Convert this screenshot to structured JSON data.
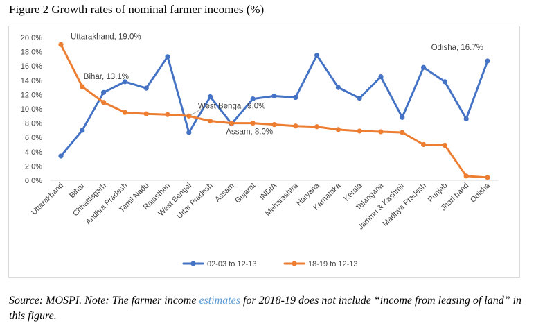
{
  "figure_title": "Figure 2 Growth rates of nominal farmer incomes (%)",
  "note": {
    "before": "Source: MOSPI. Note: The farmer income ",
    "link": "estimates",
    "after": " for 2018-19 does not include “income from leasing of land” in this figure."
  },
  "chart_data": {
    "type": "line",
    "title": "",
    "xlabel": "",
    "ylabel": "",
    "ylim": [
      0,
      20
    ],
    "ytick_labels": [
      "0.0%",
      "2.0%",
      "4.0%",
      "6.0%",
      "8.0%",
      "10.0%",
      "12.0%",
      "14.0%",
      "16.0%",
      "18.0%",
      "20.0%"
    ],
    "grid": false,
    "legend_position": "bottom",
    "categories": [
      "Uttarakhand",
      "Bihar",
      "Chhattisgarh",
      "Andhra Pradesh",
      "Tamil Nadu",
      "Rajasthan",
      "West Bengal",
      "Uttar Pradesh",
      "Assam",
      "Gujarat",
      "INDIA",
      "Maharashtra",
      "Haryana",
      "Karnataka",
      "Kerala",
      "Telangana",
      "Jammu & Kashmir",
      "Madhya Pradesh",
      "Punjab",
      "Jharkhand",
      "Odisha"
    ],
    "series": [
      {
        "name": "02-03 to 12-13",
        "color": "#4472c4",
        "values": [
          3.4,
          7.0,
          12.3,
          13.8,
          12.9,
          17.3,
          6.7,
          11.7,
          7.9,
          11.4,
          11.8,
          11.6,
          17.5,
          13.0,
          11.5,
          14.5,
          8.8,
          15.8,
          13.8,
          8.6,
          16.7
        ]
      },
      {
        "name": "18-19 to 12-13",
        "color": "#ed7d31",
        "values": [
          19.0,
          13.1,
          10.9,
          9.5,
          9.3,
          9.2,
          9.0,
          8.3,
          8.0,
          8.0,
          7.8,
          7.6,
          7.5,
          7.1,
          6.9,
          6.8,
          6.7,
          5.0,
          4.9,
          0.6,
          0.4
        ]
      }
    ],
    "annotations": [
      {
        "text": "Uttarakhand, 19.0%"
      },
      {
        "text": "Bihar, 13.1%"
      },
      {
        "text": "West Bengal, 9.0%"
      },
      {
        "text": "Assam, 8.0%"
      },
      {
        "text": "Odisha, 16.7%"
      }
    ]
  }
}
